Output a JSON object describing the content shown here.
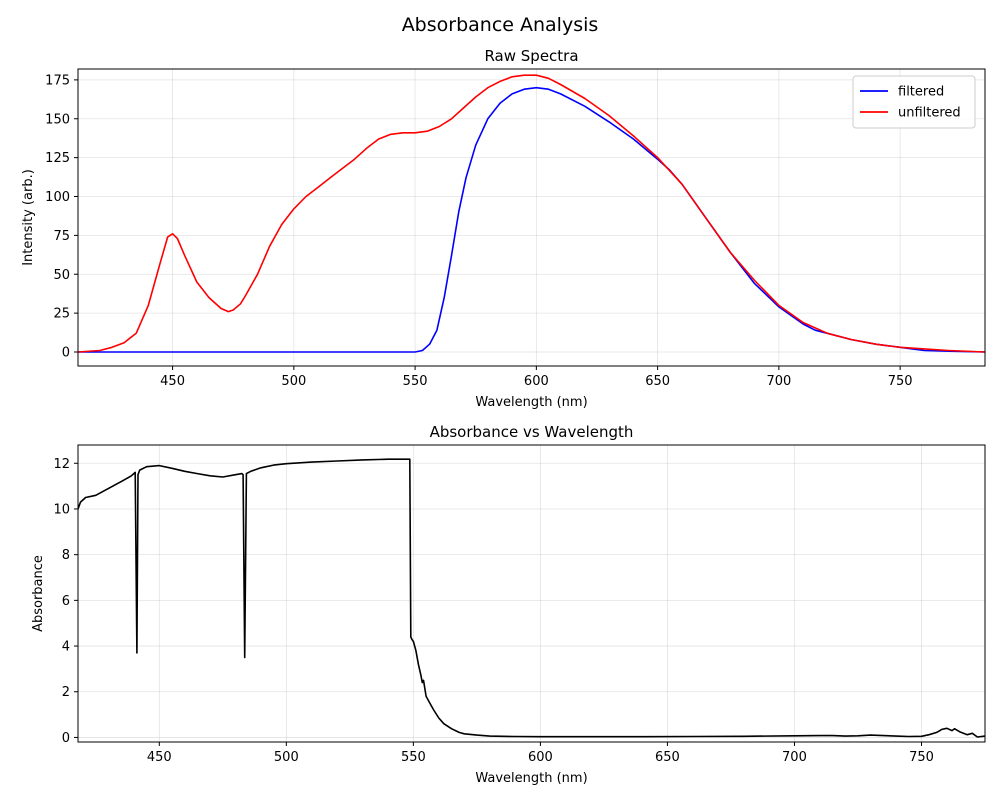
{
  "figure": {
    "suptitle": "Absorbance Analysis"
  },
  "chart_data": [
    {
      "type": "line",
      "title": "Raw Spectra",
      "xlabel": "Wavelength (nm)",
      "ylabel": "Intensity (arb.)",
      "xlim": [
        411,
        785
      ],
      "ylim": [
        -9,
        182
      ],
      "xticks": [
        450,
        500,
        550,
        600,
        650,
        700,
        750
      ],
      "yticks": [
        0,
        25,
        50,
        75,
        100,
        125,
        150,
        175
      ],
      "grid": true,
      "legend_position": "upper right",
      "series": [
        {
          "name": "filtered",
          "color": "#0000ff",
          "x": [
            411,
            550,
            553,
            556,
            559,
            562,
            565,
            568,
            571,
            575,
            580,
            585,
            590,
            595,
            600,
            605,
            610,
            620,
            630,
            640,
            650,
            655,
            660,
            670,
            680,
            690,
            700,
            710,
            715,
            720,
            725,
            730,
            740,
            750,
            755,
            760,
            770,
            785
          ],
          "y": [
            0,
            0,
            1,
            5,
            14,
            35,
            62,
            90,
            112,
            133,
            150,
            160,
            166,
            169,
            170,
            169,
            166,
            158,
            148,
            137,
            124,
            117,
            108,
            86,
            64,
            44,
            29,
            18,
            14,
            12,
            10,
            8,
            5,
            3,
            2,
            1,
            0.5,
            0
          ]
        },
        {
          "name": "unfiltered",
          "color": "#ff0000",
          "x": [
            411,
            420,
            425,
            430,
            435,
            440,
            445,
            448,
            450,
            452,
            455,
            460,
            465,
            470,
            473,
            475,
            478,
            480,
            485,
            490,
            495,
            500,
            505,
            510,
            515,
            520,
            525,
            530,
            535,
            540,
            545,
            550,
            555,
            560,
            565,
            570,
            575,
            580,
            585,
            590,
            595,
            600,
            605,
            610,
            620,
            630,
            640,
            650,
            660,
            670,
            680,
            690,
            700,
            710,
            720,
            730,
            740,
            750,
            760,
            770,
            785
          ],
          "y": [
            0,
            1,
            3,
            6,
            12,
            30,
            58,
            74,
            76,
            73,
            62,
            45,
            35,
            28,
            26,
            27,
            31,
            36,
            50,
            68,
            82,
            92,
            100,
            106,
            112,
            118,
            124,
            131,
            137,
            140,
            141,
            141,
            142,
            145,
            150,
            157,
            164,
            170,
            174,
            177,
            178,
            178,
            176,
            172,
            163,
            152,
            139,
            125,
            108,
            86,
            64,
            46,
            30,
            19,
            12,
            8,
            5,
            3,
            2,
            1,
            0
          ]
        }
      ]
    },
    {
      "type": "line",
      "title": "Absorbance vs Wavelength",
      "xlabel": "Wavelength (nm)",
      "ylabel": "Absorbance",
      "xlim": [
        418,
        775
      ],
      "ylim": [
        -0.2,
        12.8
      ],
      "xticks": [
        450,
        500,
        550,
        600,
        650,
        700,
        750
      ],
      "yticks": [
        0,
        2,
        4,
        6,
        8,
        10,
        12
      ],
      "grid": true,
      "series": [
        {
          "name": "",
          "color": "#000000",
          "x": [
            418,
            419,
            421,
            425,
            430,
            435,
            439,
            440.5,
            441.2,
            441.6,
            442.3,
            445,
            450,
            455,
            460,
            465,
            470,
            475,
            480,
            482.5,
            483,
            483.6,
            484.3,
            486,
            490,
            495,
            500,
            510,
            520,
            530,
            540,
            548.6,
            549,
            549.4,
            550,
            551,
            552,
            553,
            553.5,
            554,
            555,
            556,
            557,
            558,
            560,
            562,
            565,
            568,
            570,
            575,
            580,
            590,
            600,
            620,
            640,
            660,
            680,
            700,
            710,
            715,
            720,
            725,
            730,
            735,
            740,
            745,
            750,
            753,
            756,
            758,
            760,
            762,
            763,
            765,
            768,
            770,
            772,
            775
          ],
          "y": [
            10.0,
            10.3,
            10.5,
            10.6,
            10.9,
            11.2,
            11.45,
            11.6,
            3.7,
            11.5,
            11.7,
            11.85,
            11.9,
            11.78,
            11.65,
            11.55,
            11.45,
            11.4,
            11.5,
            11.55,
            11.5,
            3.5,
            11.55,
            11.65,
            11.8,
            11.92,
            11.98,
            12.05,
            12.1,
            12.15,
            12.18,
            12.18,
            4.4,
            4.3,
            4.2,
            3.8,
            3.2,
            2.7,
            2.4,
            2.5,
            1.8,
            1.6,
            1.4,
            1.2,
            0.85,
            0.6,
            0.38,
            0.22,
            0.16,
            0.1,
            0.06,
            0.04,
            0.03,
            0.03,
            0.03,
            0.04,
            0.05,
            0.07,
            0.08,
            0.08,
            0.06,
            0.07,
            0.1,
            0.08,
            0.06,
            0.04,
            0.05,
            0.12,
            0.22,
            0.35,
            0.4,
            0.3,
            0.38,
            0.25,
            0.12,
            0.18,
            0.02,
            0.06
          ]
        }
      ]
    }
  ]
}
